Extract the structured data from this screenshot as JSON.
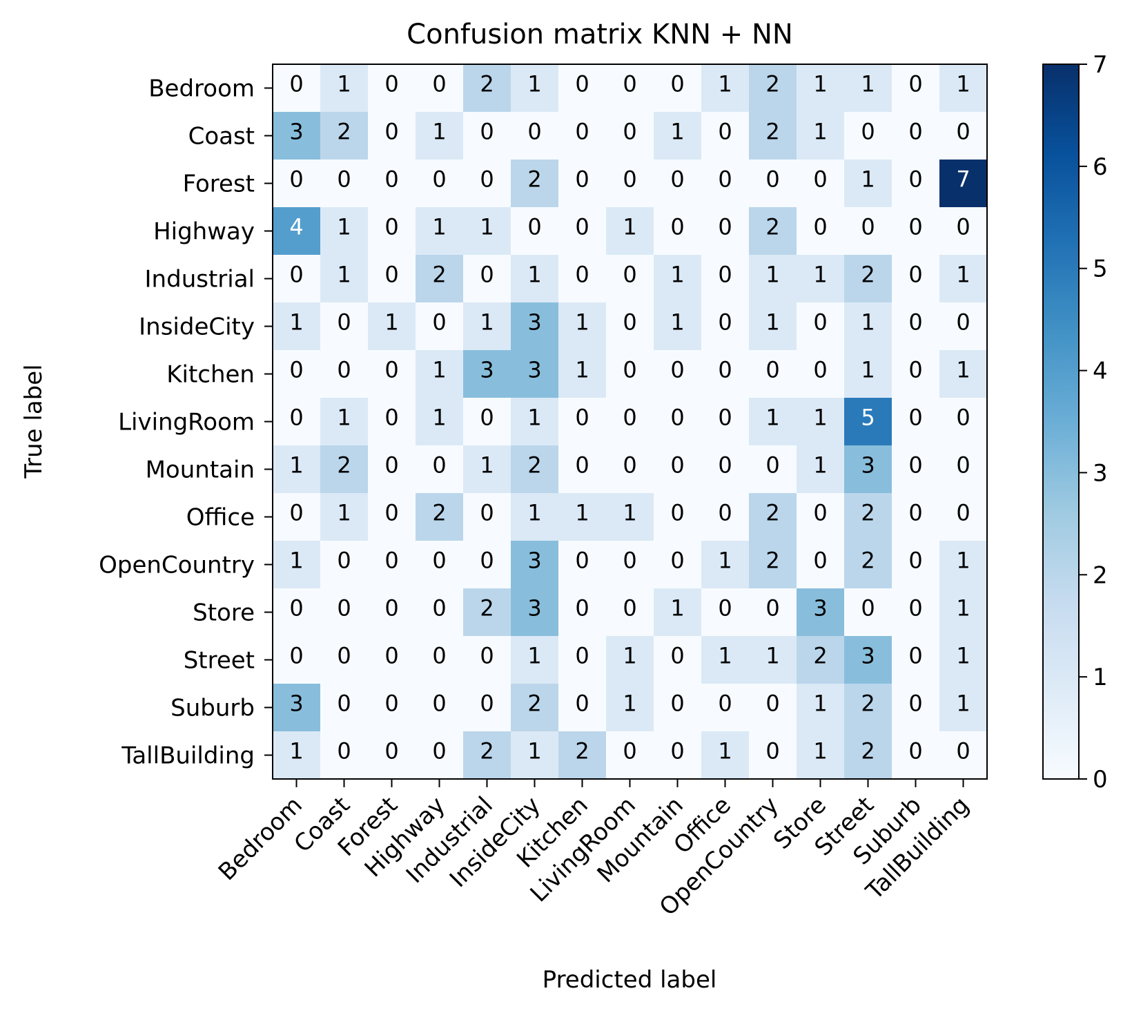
{
  "chart_data": {
    "type": "heatmap",
    "title": "Confusion matrix KNN + NN",
    "xlabel": "Predicted label",
    "ylabel": "True label",
    "x_categories": [
      "Bedroom",
      "Coast",
      "Forest",
      "Highway",
      "Industrial",
      "InsideCity",
      "Kitchen",
      "LivingRoom",
      "Mountain",
      "Office",
      "OpenCountry",
      "Store",
      "Street",
      "Suburb",
      "TallBuilding"
    ],
    "y_categories": [
      "Bedroom",
      "Coast",
      "Forest",
      "Highway",
      "Industrial",
      "InsideCity",
      "Kitchen",
      "LivingRoom",
      "Mountain",
      "Office",
      "OpenCountry",
      "Store",
      "Street",
      "Suburb",
      "TallBuilding"
    ],
    "values": [
      [
        0,
        1,
        0,
        0,
        2,
        1,
        0,
        0,
        0,
        1,
        2,
        1,
        1,
        0,
        1
      ],
      [
        3,
        2,
        0,
        1,
        0,
        0,
        0,
        0,
        1,
        0,
        2,
        1,
        0,
        0,
        0
      ],
      [
        0,
        0,
        0,
        0,
        0,
        2,
        0,
        0,
        0,
        0,
        0,
        0,
        1,
        0,
        7
      ],
      [
        4,
        1,
        0,
        1,
        1,
        0,
        0,
        1,
        0,
        0,
        2,
        0,
        0,
        0,
        0
      ],
      [
        0,
        1,
        0,
        2,
        0,
        1,
        0,
        0,
        1,
        0,
        1,
        1,
        2,
        0,
        1
      ],
      [
        1,
        0,
        1,
        0,
        1,
        3,
        1,
        0,
        1,
        0,
        1,
        0,
        1,
        0,
        0
      ],
      [
        0,
        0,
        0,
        1,
        3,
        3,
        1,
        0,
        0,
        0,
        0,
        0,
        1,
        0,
        1
      ],
      [
        0,
        1,
        0,
        1,
        0,
        1,
        0,
        0,
        0,
        0,
        1,
        1,
        5,
        0,
        0
      ],
      [
        1,
        2,
        0,
        0,
        1,
        2,
        0,
        0,
        0,
        0,
        0,
        1,
        3,
        0,
        0
      ],
      [
        0,
        1,
        0,
        2,
        0,
        1,
        1,
        1,
        0,
        0,
        2,
        0,
        2,
        0,
        0
      ],
      [
        1,
        0,
        0,
        0,
        0,
        3,
        0,
        0,
        0,
        1,
        2,
        0,
        2,
        0,
        1
      ],
      [
        0,
        0,
        0,
        0,
        2,
        3,
        0,
        0,
        1,
        0,
        0,
        3,
        0,
        0,
        1
      ],
      [
        0,
        0,
        0,
        0,
        0,
        1,
        0,
        1,
        0,
        1,
        1,
        2,
        3,
        0,
        1
      ],
      [
        3,
        0,
        0,
        0,
        0,
        2,
        0,
        1,
        0,
        0,
        0,
        1,
        2,
        0,
        1
      ],
      [
        1,
        0,
        0,
        0,
        2,
        1,
        2,
        0,
        0,
        1,
        0,
        1,
        2,
        0,
        0
      ]
    ],
    "colorbar": {
      "min": 0,
      "max": 7,
      "ticks": [
        "0",
        "1",
        "2",
        "3",
        "4",
        "5",
        "6",
        "7"
      ],
      "colormap": "Blues"
    }
  }
}
